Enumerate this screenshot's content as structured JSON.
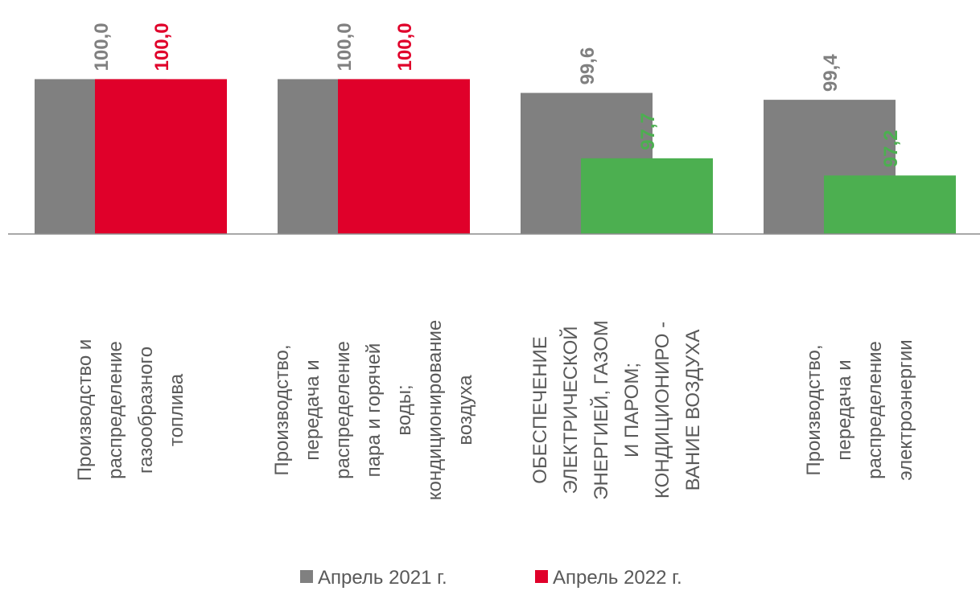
{
  "chart_data": {
    "type": "bar",
    "categories": [
      "Производство и\nраспределение\nгазообразного\nтоплива",
      "Производство,\nпередача и\nраспределение\nпара и горячей\nводы;\nкондиционирование\nвоздуха",
      "ОБЕСПЕЧЕНИЕ\nЭЛЕКТРИЧЕСКОЙ\nЭНЕРГИЕЙ, ГАЗОМ\nИ ПАРОМ;\nКОНДИЦИОНИРО -\nВАНИЕ ВОЗДУХА",
      "Производство,\nпередача и\nраспределение\nэлектроэнергии"
    ],
    "series": [
      {
        "name": "Апрель 2021 г.",
        "color": "#808080",
        "colors": [
          "#808080",
          "#808080",
          "#808080",
          "#808080"
        ],
        "values": [
          100.0,
          100.0,
          99.6,
          99.4
        ],
        "value_labels": [
          "100,0",
          "100,0",
          "99,6",
          "99,4"
        ]
      },
      {
        "name": "Апрель 2022 г.",
        "color": "#e0002a",
        "colors": [
          "#e0002a",
          "#e0002a",
          "#4caf50",
          "#4caf50"
        ],
        "values": [
          100.0,
          100.0,
          97.7,
          97.2
        ],
        "value_labels": [
          "100,0",
          "100,0",
          "97,7",
          "97,2"
        ]
      }
    ],
    "ylim": [
      95.5,
      102.3
    ],
    "legend": "bottom"
  }
}
